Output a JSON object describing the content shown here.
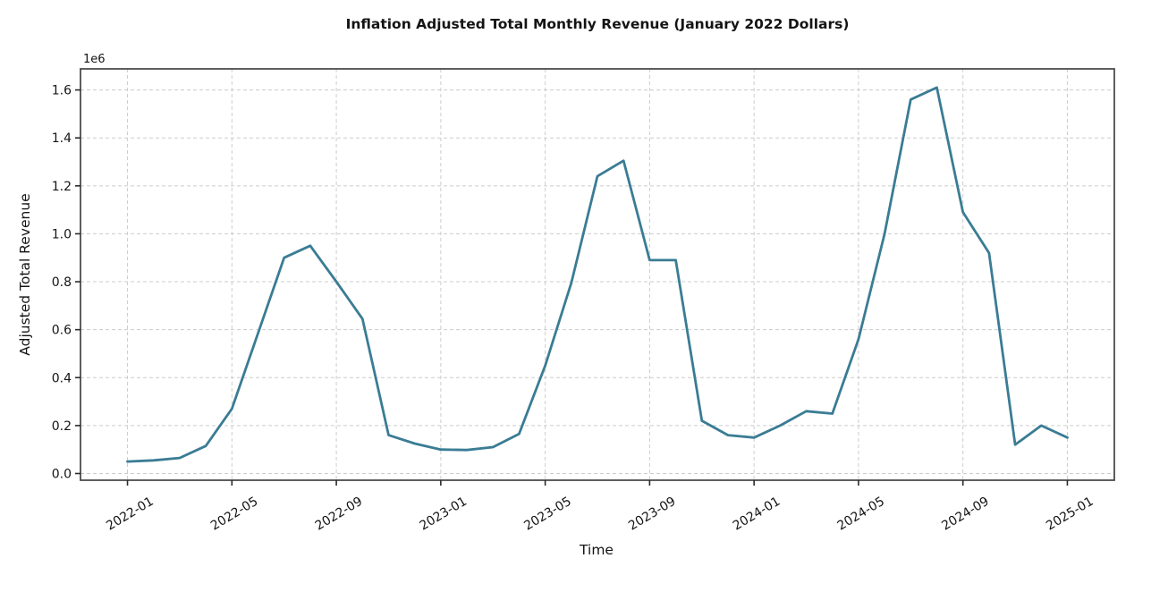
{
  "chart_data": {
    "type": "line",
    "title": "Inflation Adjusted Total Monthly Revenue (January 2022 Dollars)",
    "xlabel": "Time",
    "ylabel": "Adjusted Total Revenue",
    "y_offset_label": "1e6",
    "x": [
      "2022-01",
      "2022-02",
      "2022-03",
      "2022-04",
      "2022-05",
      "2022-06",
      "2022-07",
      "2022-08",
      "2022-09",
      "2022-10",
      "2022-11",
      "2022-12",
      "2023-01",
      "2023-02",
      "2023-03",
      "2023-04",
      "2023-05",
      "2023-06",
      "2023-07",
      "2023-08",
      "2023-09",
      "2023-10",
      "2023-11",
      "2023-12",
      "2024-01",
      "2024-02",
      "2024-03",
      "2024-04",
      "2024-05",
      "2024-06",
      "2024-07",
      "2024-08",
      "2024-09",
      "2024-10",
      "2024-11",
      "2024-12",
      "2025-01"
    ],
    "values": [
      50000,
      55000,
      65000,
      115000,
      270000,
      585000,
      900000,
      950000,
      800000,
      645000,
      160000,
      125000,
      100000,
      98000,
      110000,
      165000,
      450000,
      795000,
      1240000,
      1305000,
      890000,
      890000,
      220000,
      160000,
      150000,
      200000,
      260000,
      250000,
      560000,
      1000000,
      1560000,
      1610000,
      1090000,
      920000,
      120000,
      200000,
      150000
    ],
    "xtick_labels": [
      "2022-01",
      "2022-05",
      "2022-09",
      "2023-01",
      "2023-05",
      "2023-09",
      "2024-01",
      "2024-05",
      "2024-09",
      "2025-01"
    ],
    "xtick_indices": [
      0,
      4,
      8,
      12,
      16,
      20,
      24,
      28,
      32,
      36
    ],
    "ytick_values": [
      0,
      200000,
      400000,
      600000,
      800000,
      1000000,
      1200000,
      1400000,
      1600000
    ],
    "ytick_labels": [
      "0.0",
      "0.2",
      "0.4",
      "0.6",
      "0.8",
      "1.0",
      "1.2",
      "1.4",
      "1.6"
    ],
    "ylim": [
      -28000,
      1688000
    ],
    "xlim_index": [
      -1.8,
      37.8
    ],
    "grid": true,
    "legend": "none",
    "x_tick_rotation_deg": 31,
    "line_color": "#3a7c94",
    "grid_color": "#cccccc",
    "spine_color": "#424242",
    "tick_color": "#2b2b2b",
    "text_color": "#141414",
    "background": "#ffffff"
  }
}
